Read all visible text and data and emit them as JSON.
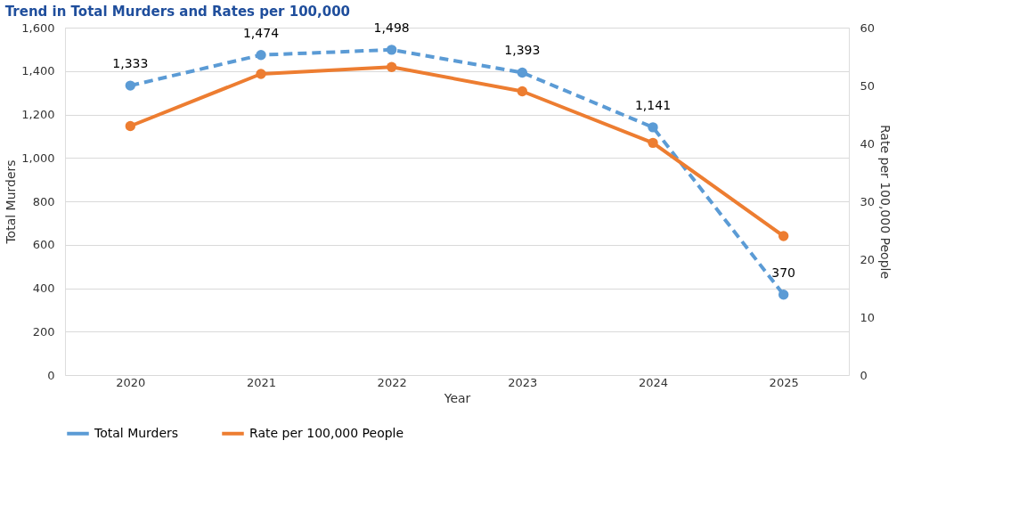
{
  "chart_data": {
    "type": "line",
    "title": "Trend in Total Murders and Rates per 100,000",
    "xlabel": "Year",
    "ylabel": "Total Murders",
    "y2label": "Rate per 100,000 People",
    "categories": [
      "2020",
      "2021",
      "2022",
      "2023",
      "2024",
      "2025"
    ],
    "series": [
      {
        "name": "Total Murders",
        "color": "#5b9bd5",
        "line_style": "dashed",
        "values": [
          1333,
          1474,
          1498,
          1393,
          1141,
          370
        ],
        "value_labels": [
          "1,333",
          "1,474",
          "1,498",
          "1,393",
          "1,141",
          "370"
        ]
      },
      {
        "name": "Rate per 100,000 People",
        "color": "#ed7d31",
        "line_style": "solid",
        "axis": "y2",
        "values": [
          43,
          52,
          53.2,
          49,
          40.1,
          24
        ]
      }
    ],
    "ylim": [
      0,
      1600
    ],
    "yticks": [
      0,
      200,
      400,
      600,
      800,
      {
        "value": 1000,
        "label": "1,000"
      },
      {
        "value": 1200,
        "label": "1,200"
      },
      {
        "value": 1400,
        "label": "1,400"
      },
      {
        "value": 1600,
        "label": "1,600"
      }
    ],
    "y2lim": [
      0,
      60
    ],
    "y2ticks": [
      0,
      10,
      20,
      30,
      40,
      50,
      60
    ],
    "grid": "y",
    "legend": "bottom",
    "marker": "circle"
  }
}
